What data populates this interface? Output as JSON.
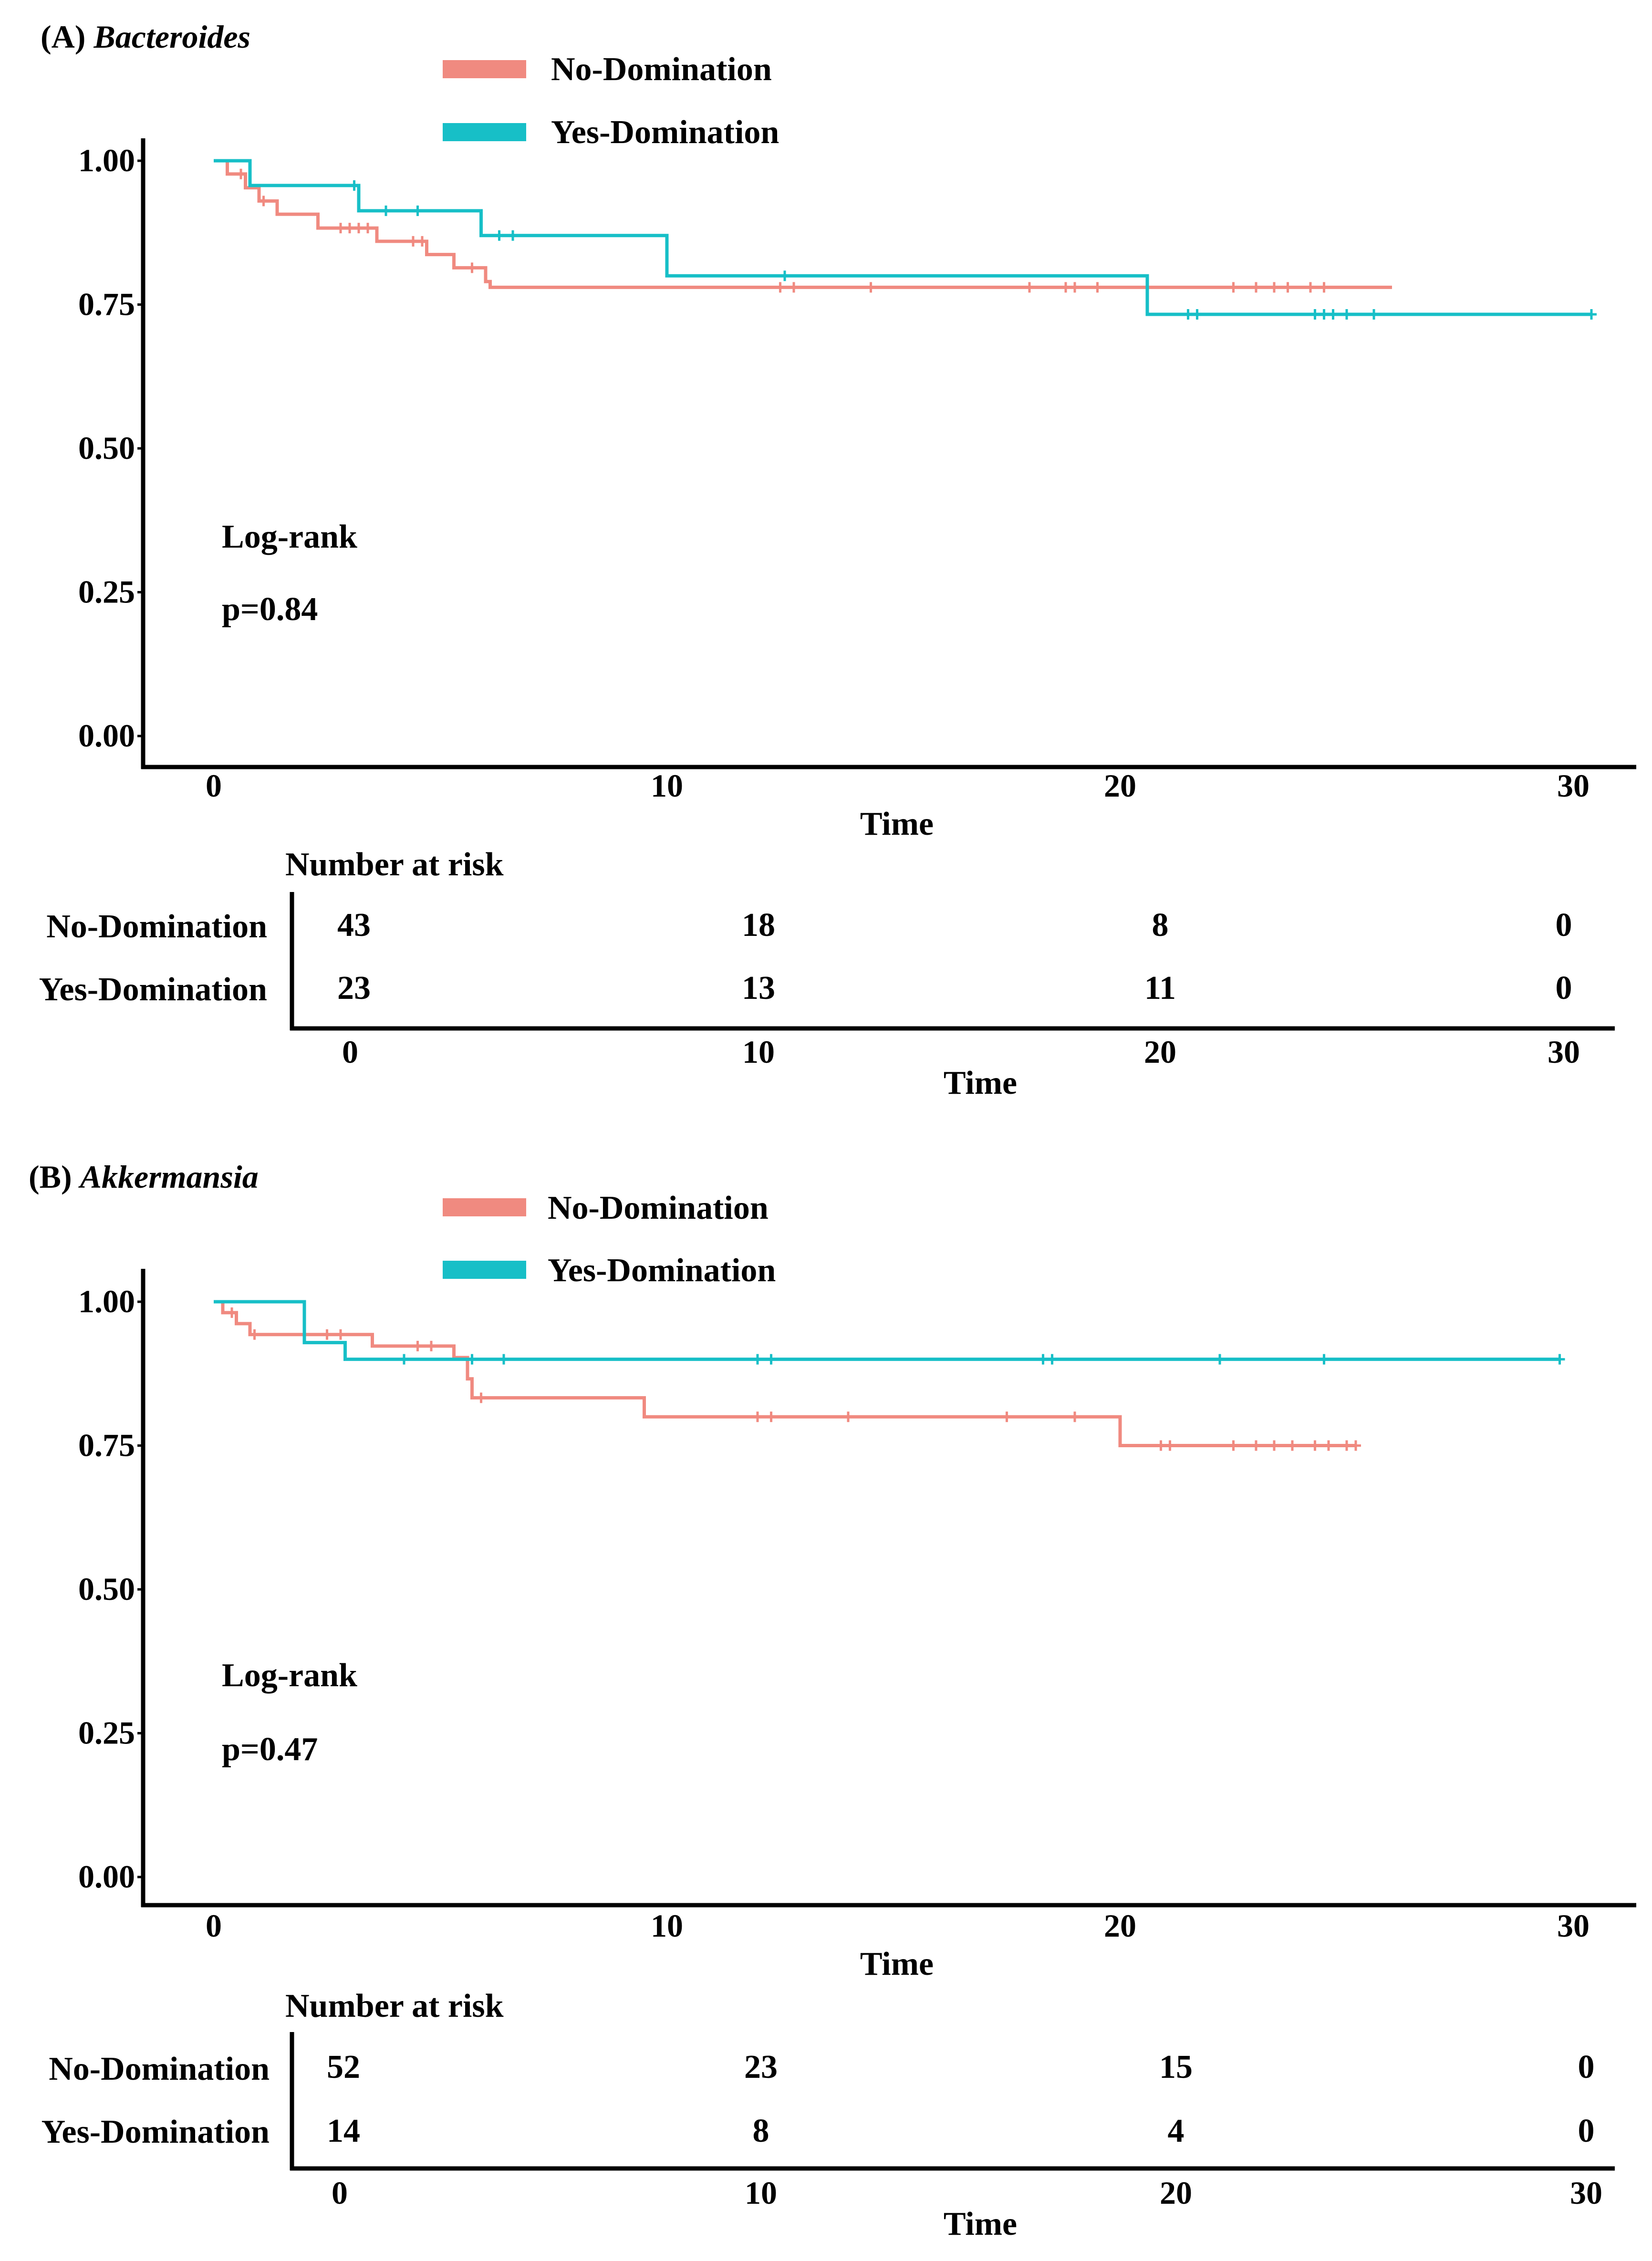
{
  "colors": {
    "no": "#f08a80",
    "yes": "#17bfc7",
    "axis": "#000000"
  },
  "panels": [
    {
      "label": "(A)",
      "genus": "Bacteroides",
      "legend": [
        "No-Domination",
        "Yes-Domination"
      ],
      "stats": {
        "test": "Log-rank",
        "p": "p=0.84"
      },
      "risk": {
        "title": "Number at risk",
        "rows": [
          {
            "name": "No-Domination",
            "counts": [
              "43",
              "18",
              "8",
              "0"
            ]
          },
          {
            "name": "Yes-Domination",
            "counts": [
              "23",
              "13",
              "11",
              "0"
            ]
          }
        ],
        "ticks": [
          "0",
          "10",
          "20",
          "30"
        ],
        "xlabel": "Time"
      }
    },
    {
      "label": "(B)",
      "genus": "Akkermansia",
      "legend": [
        "No-Domination",
        "Yes-Domination"
      ],
      "stats": {
        "test": "Log-rank",
        "p": "p=0.47"
      },
      "risk": {
        "title": "Number at risk",
        "rows": [
          {
            "name": "No-Domination",
            "counts": [
              "52",
              "23",
              "15",
              "0"
            ]
          },
          {
            "name": "Yes-Domination",
            "counts": [
              "14",
              "8",
              "4",
              "0"
            ]
          }
        ],
        "ticks": [
          "0",
          "10",
          "20",
          "30"
        ],
        "xlabel": "Time"
      }
    }
  ],
  "chart_data": [
    {
      "type": "line",
      "title": "Bacteroides",
      "xlabel": "Time",
      "ylabel": "",
      "xlim": [
        0,
        30
      ],
      "ylim": [
        0,
        1
      ],
      "xticks": [
        "0",
        "10",
        "20",
        "30"
      ],
      "yticks": [
        "0.00",
        "0.25",
        "0.50",
        "0.75",
        "1.00"
      ],
      "series": [
        {
          "name": "No-Domination",
          "steps": [
            [
              0,
              1.0
            ],
            [
              0.3,
              0.977
            ],
            [
              0.7,
              0.953
            ],
            [
              1.0,
              0.93
            ],
            [
              1.4,
              0.907
            ],
            [
              2.3,
              0.883
            ],
            [
              3.6,
              0.86
            ],
            [
              4.7,
              0.837
            ],
            [
              5.3,
              0.814
            ],
            [
              6.0,
              0.79
            ],
            [
              6.1,
              0.78
            ],
            [
              26.0,
              0.78
            ]
          ],
          "censored": [
            0.6,
            1.1,
            2.8,
            3.0,
            3.2,
            3.4,
            4.4,
            4.6,
            5.7,
            12.5,
            12.8,
            14.5,
            18.0,
            18.8,
            19.0,
            19.5,
            22.5,
            23.0,
            23.4,
            23.7,
            24.2,
            24.5
          ]
        },
        {
          "name": "Yes-Domination",
          "steps": [
            [
              0,
              1.0
            ],
            [
              0.8,
              0.957
            ],
            [
              3.2,
              0.913
            ],
            [
              5.9,
              0.87
            ],
            [
              10.0,
              0.8
            ],
            [
              20.6,
              0.733
            ],
            [
              30.4,
              0.733
            ]
          ],
          "censored": [
            3.1,
            3.8,
            4.5,
            6.3,
            6.6,
            12.6,
            21.5,
            21.7,
            24.3,
            24.5,
            24.7,
            25.0,
            25.6,
            30.4
          ]
        }
      ],
      "annotations": [
        "Log-rank",
        "p=0.84"
      ]
    },
    {
      "type": "line",
      "title": "Akkermansia",
      "xlabel": "Time",
      "ylabel": "",
      "xlim": [
        0,
        30
      ],
      "ylim": [
        0,
        1
      ],
      "xticks": [
        "0",
        "10",
        "20",
        "30"
      ],
      "yticks": [
        "0.00",
        "0.25",
        "0.50",
        "0.75",
        "1.00"
      ],
      "series": [
        {
          "name": "No-Domination",
          "steps": [
            [
              0,
              1.0
            ],
            [
              0.2,
              0.981
            ],
            [
              0.5,
              0.962
            ],
            [
              0.8,
              0.943
            ],
            [
              3.5,
              0.923
            ],
            [
              5.3,
              0.903
            ],
            [
              5.6,
              0.866
            ],
            [
              5.7,
              0.833
            ],
            [
              9.5,
              0.8
            ],
            [
              20.0,
              0.75
            ],
            [
              25.2,
              0.75
            ]
          ],
          "censored": [
            0.4,
            0.9,
            2.5,
            2.8,
            4.5,
            4.8,
            5.9,
            12.0,
            12.3,
            14.0,
            17.5,
            19.0,
            20.9,
            21.1,
            22.5,
            23.0,
            23.4,
            23.8,
            24.3,
            24.6,
            25.0,
            25.2
          ]
        },
        {
          "name": "Yes-Domination",
          "steps": [
            [
              0,
              1.0
            ],
            [
              2.0,
              0.929
            ],
            [
              2.9,
              0.9
            ],
            [
              29.7,
              0.9
            ]
          ],
          "censored": [
            4.2,
            5.7,
            6.4,
            12.0,
            12.3,
            18.3,
            18.5,
            22.2,
            24.5,
            29.7
          ]
        }
      ],
      "annotations": [
        "Log-rank",
        "p=0.47"
      ]
    }
  ]
}
